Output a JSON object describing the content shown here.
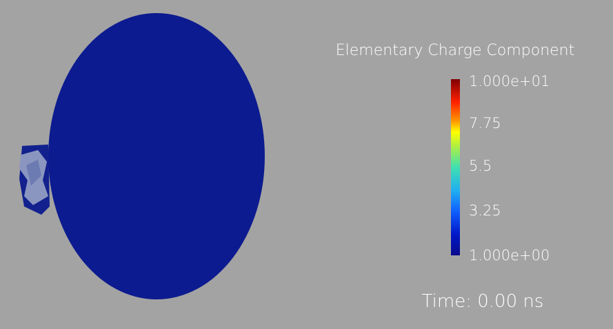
{
  "scalar_bar": {
    "title": "Elementary Charge Component",
    "labels": [
      "1.000e+01",
      "7.75",
      "5.5",
      "3.25",
      "1.000e+00"
    ]
  },
  "annotation": {
    "time": "Time: 0.00 ns"
  }
}
